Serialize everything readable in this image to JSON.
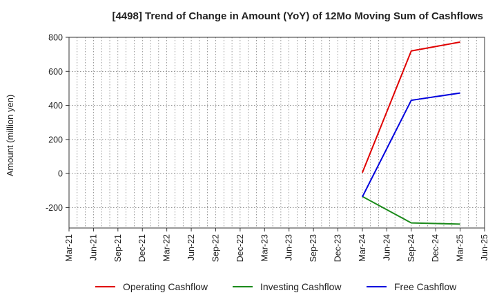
{
  "chart_data": {
    "type": "line",
    "title": "[4498]  Trend of Change in Amount (YoY) of 12Mo Moving Sum of Cashflows",
    "ylabel": "Amount (million yen)",
    "xlabel": "",
    "ylim": [
      -320,
      800
    ],
    "yticks": [
      800,
      600,
      400,
      200,
      0,
      -200
    ],
    "x_ticks": [
      "Mar-21",
      "Jun-21",
      "Sep-21",
      "Dec-21",
      "Mar-22",
      "Jun-22",
      "Sep-22",
      "Dec-22",
      "Mar-23",
      "Jun-23",
      "Sep-23",
      "Dec-23",
      "Mar-24",
      "Jun-24",
      "Sep-24",
      "Dec-24",
      "Mar-25",
      "Jun-25"
    ],
    "grid": true,
    "legend_position": "bottom",
    "series": [
      {
        "name": "Operating Cashflow",
        "color": "#e00000",
        "x": [
          "Mar-24",
          "Sep-24",
          "Mar-25"
        ],
        "values": [
          5,
          720,
          772
        ]
      },
      {
        "name": "Investing Cashflow",
        "color": "#1a8a1a",
        "x": [
          "Mar-24",
          "Sep-24",
          "Mar-25"
        ],
        "values": [
          -135,
          -290,
          -297
        ]
      },
      {
        "name": "Free Cashflow",
        "color": "#0000dd",
        "x": [
          "Mar-24",
          "Sep-24",
          "Mar-25"
        ],
        "values": [
          -137,
          430,
          473
        ]
      }
    ]
  }
}
